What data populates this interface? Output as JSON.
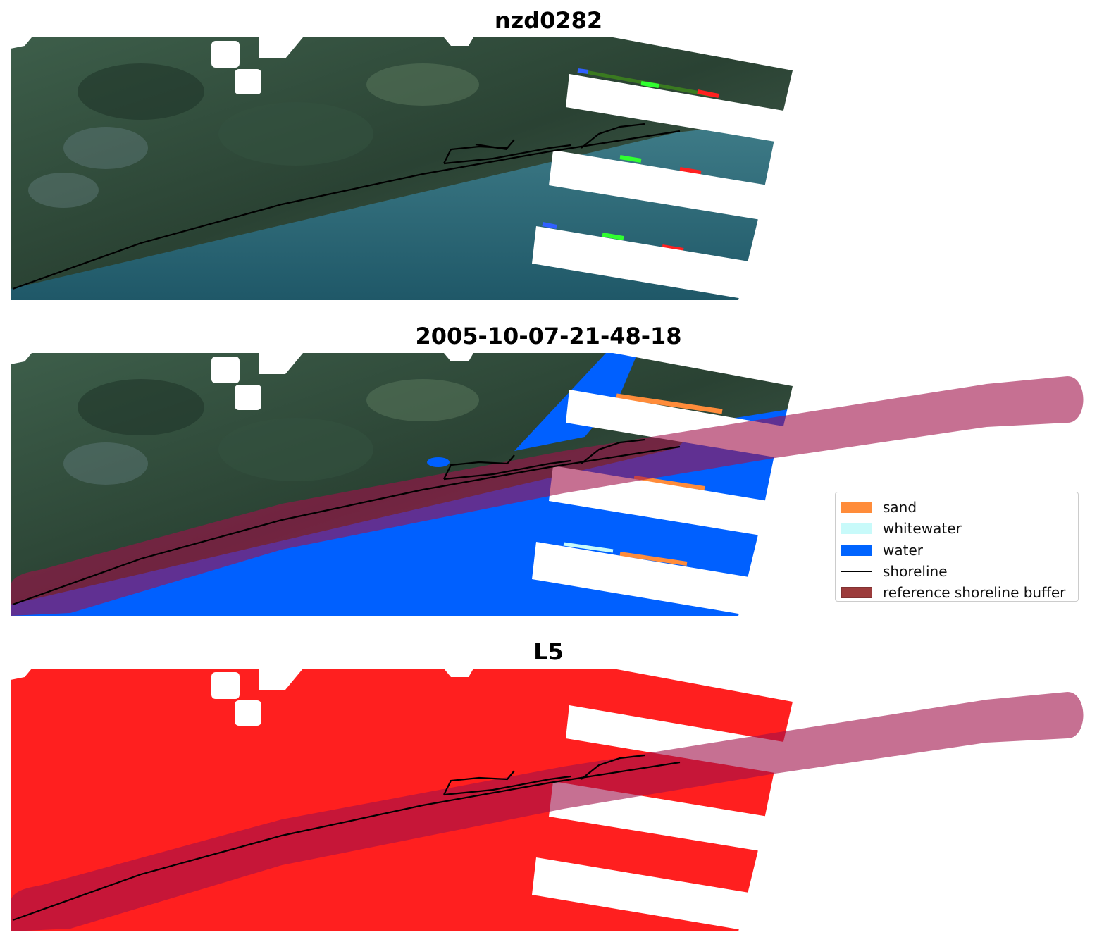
{
  "panels": [
    {
      "title": "nzd0282",
      "view": "rgb-image"
    },
    {
      "title": "2005-10-07-21-48-18",
      "view": "classified"
    },
    {
      "title": "L5",
      "view": "mask"
    }
  ],
  "legend": {
    "placement": "center-right of middle panel",
    "entries": [
      {
        "label": "sand",
        "color": "#ff8c3a",
        "kind": "patch"
      },
      {
        "label": "whitewater",
        "color": "#c8fafa",
        "kind": "patch"
      },
      {
        "label": "water",
        "color": "#0064ff",
        "kind": "patch"
      },
      {
        "label": "shoreline",
        "color": "#000000",
        "kind": "line"
      },
      {
        "label": "reference shoreline buffer",
        "color": "#8b1a1a",
        "kind": "patch"
      }
    ]
  },
  "colors": {
    "land": "#2f4a3a",
    "sea": "#35707e",
    "mask_red": "#ff1f1f",
    "buffer_fill": "#a0104a"
  }
}
